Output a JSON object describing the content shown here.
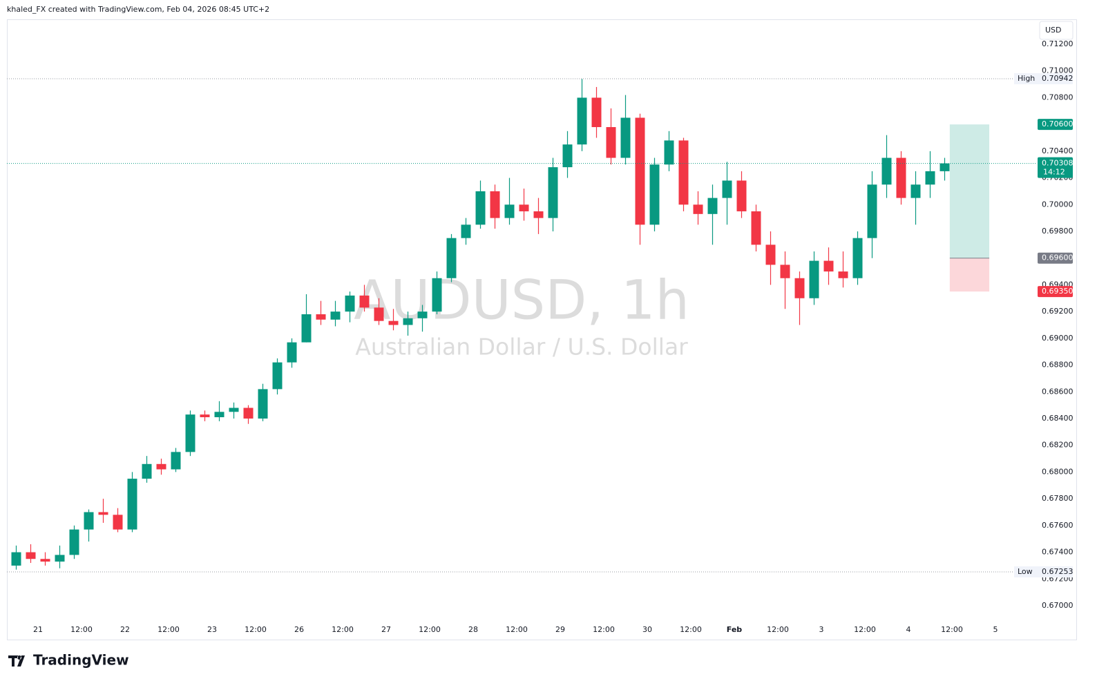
{
  "header": "khaled_FX created with TradingView.com, Feb 04, 2026 08:45 UTC+2",
  "footer": "TradingView",
  "chart_data": {
    "type": "candlestick",
    "title": "AUDUSD, 1h",
    "subtitle": "Australian Dollar / U.S. Dollar",
    "currency": "USD",
    "up_color": "#089981",
    "down_color": "#f23645",
    "x": [
      -6,
      -2,
      2,
      6,
      10,
      14,
      18,
      22,
      26,
      30,
      34,
      38,
      42,
      46,
      50,
      54,
      58,
      62,
      66,
      70,
      74,
      78,
      82,
      86,
      90,
      94,
      98,
      102,
      106,
      110,
      114,
      118,
      122,
      126,
      130,
      134,
      138,
      142,
      146,
      150,
      154,
      158,
      162,
      166,
      170,
      174,
      178,
      182,
      186,
      190,
      194,
      198,
      202,
      206,
      210,
      214,
      218,
      222,
      226,
      230,
      234,
      238,
      242,
      246,
      250
    ],
    "open": [
      0.673,
      0.674,
      0.6735,
      0.6733,
      0.6738,
      0.6757,
      0.677,
      0.6768,
      0.6757,
      0.6795,
      0.6806,
      0.6802,
      0.6815,
      0.6843,
      0.6841,
      0.6845,
      0.6848,
      0.684,
      0.6862,
      0.6882,
      0.6897,
      0.6918,
      0.6914,
      0.692,
      0.6932,
      0.6923,
      0.6913,
      0.691,
      0.6915,
      0.692,
      0.6945,
      0.6975,
      0.6985,
      0.701,
      0.699,
      0.7,
      0.6995,
      0.699,
      0.7028,
      0.7045,
      0.708,
      0.7058,
      0.7035,
      0.7065,
      0.6985,
      0.703,
      0.7048,
      0.7,
      0.6993,
      0.7005,
      0.7018,
      0.6995,
      0.697,
      0.6955,
      0.6945,
      0.693,
      0.6958,
      0.695,
      0.6945,
      0.6975,
      0.7015,
      0.7035,
      0.7005,
      0.7015,
      0.7025
    ],
    "high": [
      0.6745,
      0.6746,
      0.674,
      0.6745,
      0.676,
      0.6772,
      0.678,
      0.6773,
      0.68,
      0.6812,
      0.681,
      0.6818,
      0.6846,
      0.6846,
      0.6853,
      0.6852,
      0.685,
      0.6866,
      0.6885,
      0.69,
      0.6933,
      0.6928,
      0.6928,
      0.6935,
      0.694,
      0.693,
      0.6922,
      0.692,
      0.6925,
      0.695,
      0.6978,
      0.699,
      0.7018,
      0.7015,
      0.702,
      0.7012,
      0.7005,
      0.7035,
      0.7055,
      0.7094,
      0.7088,
      0.7072,
      0.7082,
      0.7068,
      0.7035,
      0.7055,
      0.705,
      0.701,
      0.7015,
      0.7032,
      0.7025,
      0.7,
      0.698,
      0.6965,
      0.695,
      0.6965,
      0.6968,
      0.6965,
      0.698,
      0.7025,
      0.7052,
      0.704,
      0.7025,
      0.704,
      0.7035
    ],
    "low": [
      0.6727,
      0.6732,
      0.673,
      0.6728,
      0.6735,
      0.6748,
      0.6762,
      0.6755,
      0.6755,
      0.6792,
      0.6798,
      0.68,
      0.6812,
      0.6838,
      0.6838,
      0.684,
      0.6836,
      0.6838,
      0.6858,
      0.6878,
      0.6897,
      0.691,
      0.6909,
      0.6912,
      0.692,
      0.691,
      0.6906,
      0.6902,
      0.6905,
      0.6918,
      0.6942,
      0.697,
      0.6982,
      0.6982,
      0.6985,
      0.6988,
      0.6978,
      0.698,
      0.702,
      0.704,
      0.705,
      0.703,
      0.703,
      0.697,
      0.698,
      0.7025,
      0.6995,
      0.6985,
      0.697,
      0.6985,
      0.699,
      0.6965,
      0.694,
      0.6922,
      0.691,
      0.6925,
      0.694,
      0.6938,
      0.694,
      0.696,
      0.7005,
      0.7,
      0.6985,
      0.7005,
      0.7018
    ],
    "close": [
      0.674,
      0.6735,
      0.6733,
      0.6738,
      0.6757,
      0.677,
      0.6768,
      0.6757,
      0.6795,
      0.6806,
      0.6802,
      0.6815,
      0.6843,
      0.6841,
      0.6845,
      0.6848,
      0.684,
      0.6862,
      0.6882,
      0.6897,
      0.6918,
      0.6914,
      0.692,
      0.6932,
      0.6923,
      0.6913,
      0.691,
      0.6915,
      0.692,
      0.6945,
      0.6975,
      0.6985,
      0.701,
      0.699,
      0.7,
      0.6995,
      0.699,
      0.7028,
      0.7045,
      0.708,
      0.7058,
      0.7035,
      0.7065,
      0.6985,
      0.703,
      0.7048,
      0.7,
      0.6993,
      0.7005,
      0.7018,
      0.6995,
      0.697,
      0.6955,
      0.6945,
      0.693,
      0.6958,
      0.695,
      0.6945,
      0.6975,
      0.7015,
      0.7035,
      0.7005,
      0.7015,
      0.7025,
      0.70308
    ],
    "xlim": [
      -8.571,
      275.238
    ],
    "xticks": [
      {
        "value": 0,
        "label": "21"
      },
      {
        "value": 12,
        "label": "12:00"
      },
      {
        "value": 24,
        "label": "22"
      },
      {
        "value": 36,
        "label": "12:00"
      },
      {
        "value": 48,
        "label": "23"
      },
      {
        "value": 60,
        "label": "12:00"
      },
      {
        "value": 72,
        "label": "26"
      },
      {
        "value": 84,
        "label": "12:00"
      },
      {
        "value": 96,
        "label": "27"
      },
      {
        "value": 108,
        "label": "12:00"
      },
      {
        "value": 120,
        "label": "28"
      },
      {
        "value": 132,
        "label": "12:00"
      },
      {
        "value": 144,
        "label": "29"
      },
      {
        "value": 156,
        "label": "12:00"
      },
      {
        "value": 168,
        "label": "30"
      },
      {
        "value": 180,
        "label": "12:00"
      },
      {
        "value": 192,
        "label": "Feb"
      },
      {
        "value": 204,
        "label": "12:00"
      },
      {
        "value": 216,
        "label": "3"
      },
      {
        "value": 228,
        "label": "12:00"
      },
      {
        "value": 240,
        "label": "4"
      },
      {
        "value": 252,
        "label": "12:00"
      },
      {
        "value": 264,
        "label": "5"
      }
    ],
    "ylim": [
      0.66881,
      0.71386
    ],
    "yticks": [
      {
        "value": 0.712,
        "label": "0.71200"
      },
      {
        "value": 0.71,
        "label": "0.71000"
      },
      {
        "value": 0.708,
        "label": "0.70800"
      },
      {
        "value": 0.706,
        "label": "0.70600"
      },
      {
        "value": 0.704,
        "label": "0.70400"
      },
      {
        "value": 0.702,
        "label": "0.70200"
      },
      {
        "value": 0.7,
        "label": "0.70000"
      },
      {
        "value": 0.698,
        "label": "0.69800"
      },
      {
        "value": 0.696,
        "label": "0.69600"
      },
      {
        "value": 0.694,
        "label": "0.69400"
      },
      {
        "value": 0.692,
        "label": "0.69200"
      },
      {
        "value": 0.69,
        "label": "0.69000"
      },
      {
        "value": 0.688,
        "label": "0.68800"
      },
      {
        "value": 0.686,
        "label": "0.68600"
      },
      {
        "value": 0.684,
        "label": "0.68400"
      },
      {
        "value": 0.682,
        "label": "0.68200"
      },
      {
        "value": 0.68,
        "label": "0.68000"
      },
      {
        "value": 0.678,
        "label": "0.67800"
      },
      {
        "value": 0.676,
        "label": "0.67600"
      },
      {
        "value": 0.674,
        "label": "0.67400"
      },
      {
        "value": 0.672,
        "label": "0.67200"
      },
      {
        "value": 0.67,
        "label": "0.67000"
      }
    ],
    "high_marker": {
      "name": "High",
      "value": 0.70942,
      "label": "0.70942"
    },
    "low_marker": {
      "name": "Low",
      "value": 0.67253,
      "label": "0.67253"
    },
    "last_price": {
      "value": 0.70308,
      "label": "0.70308",
      "countdown": "14:12"
    },
    "position": {
      "x": [
        251.4,
        262.3
      ],
      "target": {
        "value": 0.706,
        "label": "0.70600"
      },
      "entry": {
        "value": 0.696,
        "label": "0.69600"
      },
      "stop": {
        "value": 0.6935,
        "label": "0.69350"
      }
    }
  }
}
